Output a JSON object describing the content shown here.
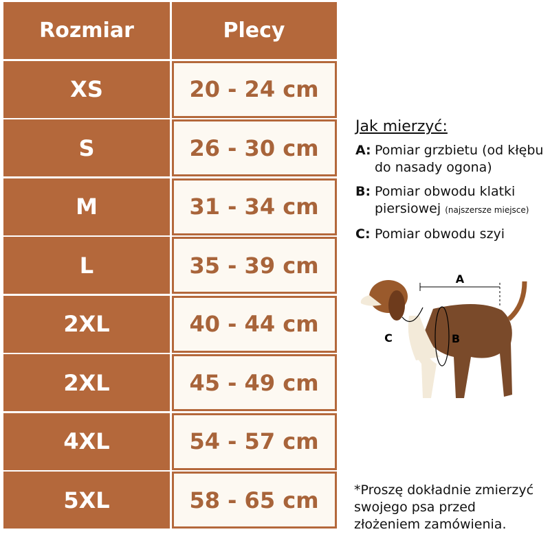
{
  "table": {
    "header": [
      "Rozmiar",
      "Plecy"
    ],
    "rows": [
      [
        "XS",
        "20 - 24 cm"
      ],
      [
        "S",
        "26 - 30 cm"
      ],
      [
        "M",
        "31 - 34 cm"
      ],
      [
        "L",
        "35 - 39 cm"
      ],
      [
        "2XL",
        "40 - 44 cm"
      ],
      [
        "2XL",
        "45 - 49 cm"
      ],
      [
        "4XL",
        "54 - 57 cm"
      ],
      [
        "5XL",
        "58 - 65 cm"
      ]
    ]
  },
  "guide": {
    "title": "Jak mierzyć:",
    "items": [
      {
        "label": "A:",
        "text": "Pomiar grzbietu (od kłębu do nasady ogona)"
      },
      {
        "label": "B:",
        "text": "Pomiar obwodu klatki piersiowej",
        "note": "(najszersze miejsce)"
      },
      {
        "label": "C:",
        "text": "Pomiar obwodu szyi"
      }
    ],
    "diagram_labels": [
      "A",
      "B",
      "C"
    ],
    "footnote": [
      "*Proszę dokładnie zmierzyć",
      "swojego psa przed",
      "złożeniem zamówienia."
    ]
  }
}
